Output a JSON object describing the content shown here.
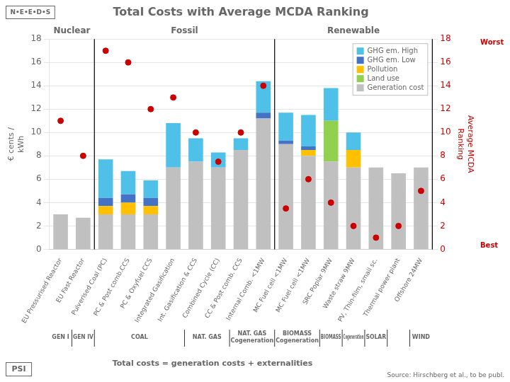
{
  "chart_data": {
    "type": "bar",
    "title": "Total Costs with Average MCDA Ranking",
    "ylabel": "€ cents /\nkWh",
    "y2label": "Average MCDA\nRanking",
    "stacked": true,
    "grid": true,
    "legend": "upper right",
    "categories": [
      "EU Pressurised Reactor",
      "EU Fast Reactor",
      "Pulverised Coal (PC)",
      "PC & Post comb.CCS",
      "PC & Oxyfuel CCS",
      "Integrated Gasification",
      "Int. Gasification & CCS",
      "Combined Cycle (CC)",
      "CC & Post comb. CCS",
      "Internal Comb. <1MW",
      "MC Fuel cell <1MW",
      "MC Fuel cell <1MW",
      "SRC Poplar 9MW",
      "Waste straw 9MW",
      "PV, Thin-film, small sc.",
      "Thermal power plant",
      "Offshore 24MW"
    ],
    "series": [
      {
        "name": "Generation cost",
        "color": "#c0c0c0",
        "values": [
          3.0,
          2.7,
          3.0,
          3.0,
          3.0,
          7.0,
          7.5,
          7.0,
          8.5,
          11.2,
          9.0,
          8.0,
          7.5,
          7.0,
          7.0,
          6.5,
          7.0
        ]
      },
      {
        "name": "Land use",
        "color": "#92d050",
        "values": [
          0.0,
          0.0,
          0.0,
          0.0,
          0.0,
          0.0,
          0.0,
          0.0,
          0.0,
          0.0,
          0.0,
          0.0,
          3.5,
          0.0,
          0.0,
          0.0,
          0.0
        ]
      },
      {
        "name": "Pollution",
        "color": "#ffc000",
        "values": [
          0.0,
          0.0,
          0.7,
          1.0,
          0.7,
          0.0,
          0.0,
          0.0,
          0.0,
          0.0,
          0.0,
          0.5,
          0.0,
          1.5,
          0.0,
          0.0,
          0.0
        ]
      },
      {
        "name": "GHG em. Low",
        "color": "#4472c4",
        "values": [
          0.0,
          0.0,
          0.7,
          0.7,
          0.7,
          0.0,
          0.0,
          0.0,
          0.0,
          0.5,
          0.3,
          0.3,
          0.0,
          0.0,
          0.0,
          0.0,
          0.0
        ]
      },
      {
        "name": "GHG em. High",
        "color": "#4fc1e9",
        "values": [
          0.0,
          0.0,
          3.3,
          2.0,
          1.5,
          3.8,
          2.0,
          1.3,
          1.0,
          2.7,
          2.4,
          2.7,
          2.8,
          1.5,
          0.0,
          0.0,
          0.0
        ]
      },
      {
        "type": "scatter",
        "axis": "y2",
        "marker": "circle",
        "color": "#cc0000",
        "values": [
          11.0,
          8.0,
          17.0,
          16.0,
          12.0,
          13.0,
          10.0,
          7.5,
          10.0,
          14.0,
          3.5,
          6.0,
          4.0,
          2.0,
          1.0,
          2.0,
          5.0
        ]
      }
    ],
    "ylim": [
      0,
      18
    ],
    "yticks": [
      0,
      2,
      4,
      6,
      8,
      10,
      12,
      14,
      16,
      18
    ],
    "y2lim": [
      0,
      18
    ],
    "y2ticks": [
      0,
      2,
      4,
      6,
      8,
      10,
      12,
      14,
      16,
      18
    ],
    "groups": [
      {
        "label": "Nuclear",
        "first": 0,
        "last": 1
      },
      {
        "label": "Fossil",
        "first": 2,
        "last": 9
      },
      {
        "label": "Renewable",
        "first": 10,
        "last": 16
      }
    ],
    "category_groups": [
      {
        "label": "GEN I",
        "first": 0,
        "last": 0
      },
      {
        "label": "GEN IV",
        "first": 1,
        "last": 1
      },
      {
        "label": "COAL",
        "first": 2,
        "last": 5
      },
      {
        "label": "NAT. GAS",
        "first": 6,
        "last": 7
      },
      {
        "label": "NAT. GAS\nCogeneration",
        "first": 8,
        "last": 9
      },
      {
        "label": "BIOMASS\nCogeneration",
        "first": 10,
        "last": 11
      },
      {
        "label": "BIOMASS",
        "first": 12,
        "last": 12
      },
      {
        "label": "Cogeneration",
        "first": 13,
        "last": 13
      },
      {
        "label": "SOLAR",
        "first": 14,
        "last": 14
      },
      {
        "label": null,
        "first": 15,
        "last": 15
      },
      {
        "label": "WIND",
        "first": 16,
        "last": 16
      }
    ],
    "annotations": {
      "y2_top": "Worst",
      "y2_bottom": "Best",
      "footer": "Total costs = generation costs + externalities",
      "source": "Source: Hirschberg et al., to be publ.",
      "logos": [
        "N•E•E•D•S",
        "PSI"
      ]
    }
  }
}
